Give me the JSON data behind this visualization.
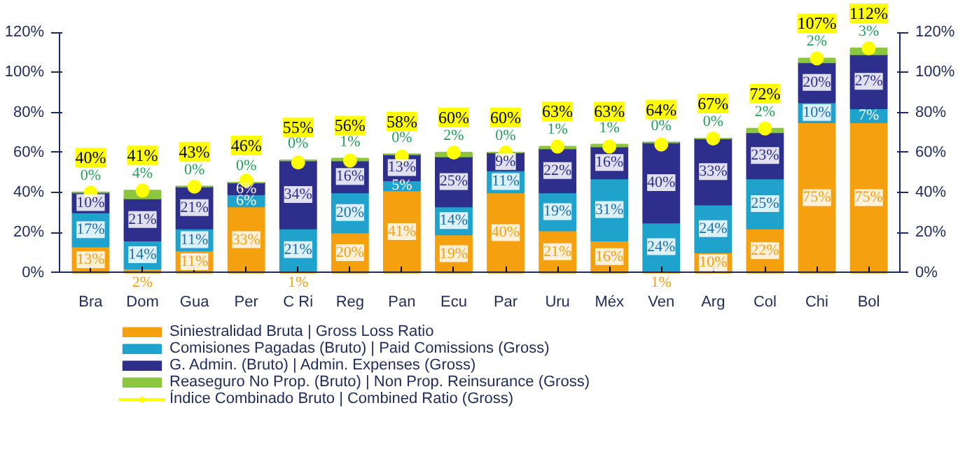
{
  "chart_data": {
    "type": "bar",
    "stacked": true,
    "legend": "bottom",
    "grid": false,
    "categories": [
      "Bra",
      "Dom",
      "Gua",
      "Per",
      "C Ri",
      "Reg",
      "Pan",
      "Ecu",
      "Par",
      "Uru",
      "Méx",
      "Ven",
      "Arg",
      "Col",
      "Chi",
      "Bol"
    ],
    "ylim": [
      0,
      120
    ],
    "yticks": [
      {
        "value": 0,
        "label": "0%"
      },
      {
        "value": 20,
        "label": "20%"
      },
      {
        "value": 40,
        "label": "40%"
      },
      {
        "value": 60,
        "label": "60%"
      },
      {
        "value": 80,
        "label": "80%"
      },
      {
        "value": 100,
        "label": "100%"
      },
      {
        "value": 120,
        "label": "120%"
      }
    ],
    "y2lim": [
      0,
      120
    ],
    "y2ticks": [
      {
        "value": 0,
        "label": "0%"
      },
      {
        "value": 20,
        "label": "20%"
      },
      {
        "value": 40,
        "label": "40%"
      },
      {
        "value": 60,
        "label": "60%"
      },
      {
        "value": 80,
        "label": "80%"
      },
      {
        "value": 100,
        "label": "100%"
      },
      {
        "value": 120,
        "label": "120%"
      }
    ],
    "series": [
      {
        "name": "Siniestralidad Bruta | Gross Loss Ratio",
        "color": "#f5a10f",
        "values": [
          13,
          2,
          11,
          33,
          1,
          20,
          41,
          19,
          40,
          21,
          16,
          1,
          10,
          22,
          75,
          75
        ],
        "value_labels": [
          "13%",
          "2%",
          "11%",
          "33%",
          "1%",
          "20%",
          "41%",
          "19%",
          "40%",
          "21%",
          "16%",
          "1%",
          "10%",
          "22%",
          "75%",
          "75%"
        ]
      },
      {
        "name": "Comisiones Pagadas (Bruto) | Paid Comissions (Gross)",
        "color": "#1fa3cc",
        "values": [
          17,
          14,
          11,
          6,
          21,
          20,
          5,
          14,
          11,
          19,
          31,
          24,
          24,
          25,
          10,
          7
        ],
        "value_labels": [
          "17%",
          "14%",
          "11%",
          "6%",
          "21%",
          "20%",
          "5%",
          "14%",
          "11%",
          "19%",
          "31%",
          "24%",
          "24%",
          "25%",
          "10%",
          "7%"
        ]
      },
      {
        "name": "G. Admin. (Bruto) | Admin. Expenses (Gross)",
        "color": "#2e2e8c",
        "values": [
          10,
          21,
          21,
          6,
          34,
          16,
          13,
          25,
          9,
          22,
          16,
          40,
          33,
          23,
          20,
          27
        ],
        "value_labels": [
          "10%",
          "21%",
          "21%",
          "6%",
          "34%",
          "16%",
          "13%",
          "25%",
          "9%",
          "22%",
          "16%",
          "40%",
          "33%",
          "23%",
          "20%",
          "27%"
        ]
      },
      {
        "name": "Reaseguro No Prop. (Bruto) | Non Prop. Reinsurance (Gross)",
        "color": "#8cc63f",
        "values": [
          0,
          4,
          0,
          0,
          0,
          1,
          0,
          2,
          0,
          1,
          1,
          0,
          0,
          2,
          2,
          3
        ],
        "value_labels": [
          "0%",
          "4%",
          "0%",
          "0%",
          "0%",
          "1%",
          "0%",
          "2%",
          "0%",
          "1%",
          "1%",
          "0%",
          "0%",
          "2%",
          "2%",
          "3%"
        ]
      },
      {
        "name": "Índice Combinado Bruto | Combined Ratio (Gross)",
        "type": "scatter",
        "marker": "circle",
        "color": "#ffff00",
        "values": [
          40,
          41,
          43,
          46,
          55,
          56,
          58,
          60,
          60,
          63,
          63,
          64,
          67,
          72,
          107,
          112
        ],
        "value_labels": [
          "40%",
          "41%",
          "43%",
          "46%",
          "55%",
          "56%",
          "58%",
          "60%",
          "60%",
          "63%",
          "63%",
          "64%",
          "67%",
          "72%",
          "107%",
          "112%"
        ]
      }
    ]
  }
}
